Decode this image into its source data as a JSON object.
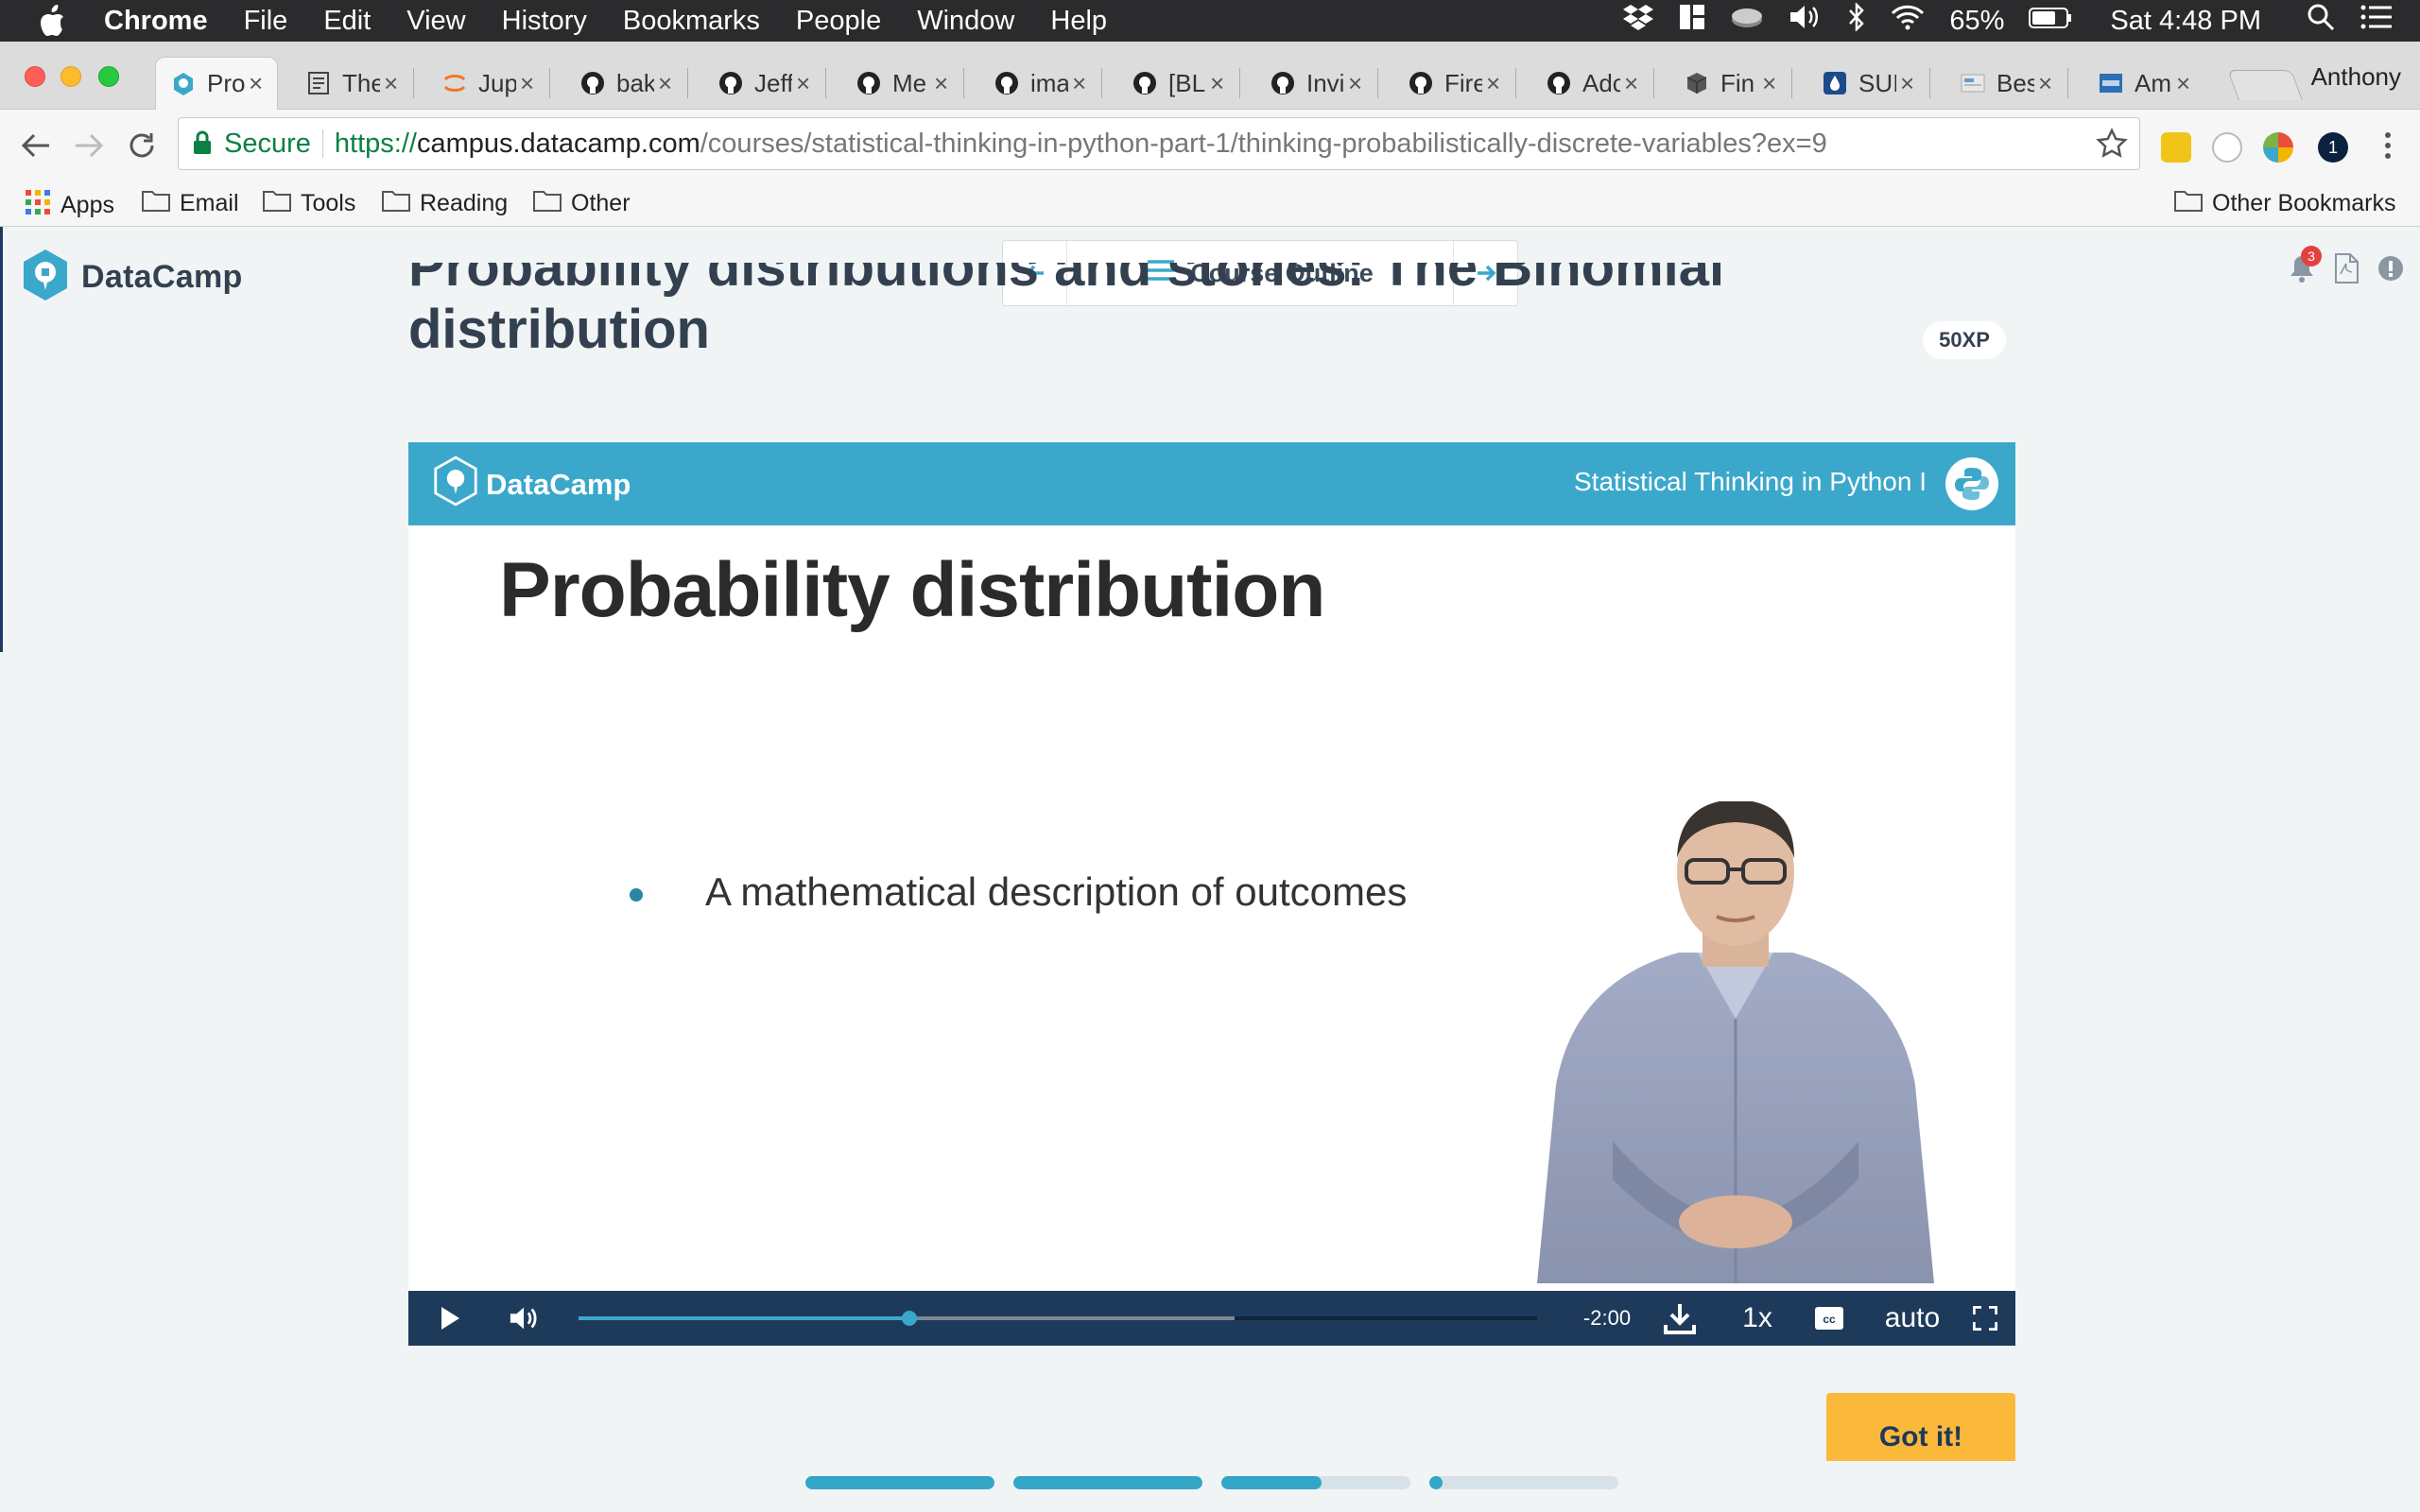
{
  "menubar": {
    "app": "Chrome",
    "items": [
      "File",
      "Edit",
      "View",
      "History",
      "Bookmarks",
      "People",
      "Window",
      "Help"
    ],
    "battery": "65%",
    "clock": "Sat 4:48 PM"
  },
  "tabs": [
    {
      "title": "Pro",
      "icon": "datacamp-icon"
    },
    {
      "title": "The",
      "icon": "document-icon"
    },
    {
      "title": "Jup",
      "icon": "jupyter-icon"
    },
    {
      "title": "bak",
      "icon": "github-icon"
    },
    {
      "title": "Jeff",
      "icon": "github-icon"
    },
    {
      "title": "Me",
      "icon": "github-icon"
    },
    {
      "title": "ima",
      "icon": "github-icon"
    },
    {
      "title": "[BL",
      "icon": "github-icon"
    },
    {
      "title": "Invi",
      "icon": "github-icon"
    },
    {
      "title": "Fire",
      "icon": "github-icon"
    },
    {
      "title": "Adc",
      "icon": "github-icon"
    },
    {
      "title": "Fin",
      "icon": "cube-icon"
    },
    {
      "title": "SUI",
      "icon": "drop-icon"
    },
    {
      "title": "Bes",
      "icon": "page-icon"
    },
    {
      "title": "Am",
      "icon": "amex-icon"
    }
  ],
  "profile": "Anthony",
  "address": {
    "secure_label": "Secure",
    "scheme": "https://",
    "host": "campus.datacamp.com",
    "path": "/courses/statistical-thinking-in-python-part-1/thinking-probabilistically-discrete-variables?ex=9"
  },
  "bookmarks": [
    "Apps",
    "Email",
    "Tools",
    "Reading",
    "Other"
  ],
  "other_bookmarks": "Other Bookmarks",
  "site": {
    "brand": "DataCamp",
    "course_outline": "Course Outline",
    "notification_count": "3"
  },
  "exercise": {
    "title": "Probability distributions and stories: The Binomial distribution",
    "xp": "50XP",
    "got_it": "Got it!"
  },
  "slide": {
    "brand": "DataCamp",
    "course": "Statistical Thinking in Python I",
    "title": "Probability distribution",
    "bullet": "A mathematical description of outcomes"
  },
  "player": {
    "time_remaining": "-2:00",
    "speed": "1x",
    "quality": "auto",
    "played_fraction": 0.345,
    "buffered_fraction": 0.684
  },
  "progress_segments": [
    1.0,
    1.0,
    0.53,
    0.05
  ],
  "colors": {
    "brand_blue": "#3ba8cb",
    "player_navy": "#1e3a5a",
    "cta_yellow": "#fbb93c"
  }
}
